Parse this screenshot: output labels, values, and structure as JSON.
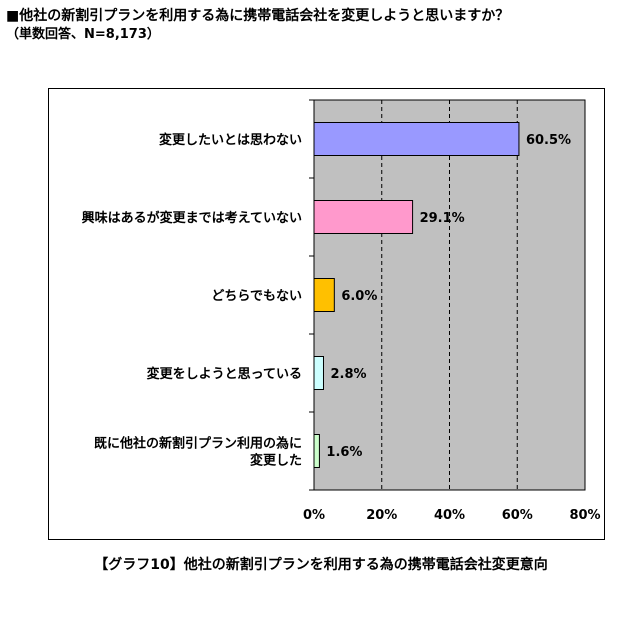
{
  "header": {
    "title": "■他社の新割引プランを利用する為に携帯電話会社を変更しようと思いますか？",
    "subtitle": "（単数回答、N=8,173）"
  },
  "caption": "【グラフ10】他社の新割引プランを利用する為の携帯電話会社変更意向",
  "colors": {
    "plot_bg": "#c0c0c0",
    "gridline": "#000000"
  },
  "chart_data": {
    "type": "bar",
    "orientation": "horizontal",
    "categories": [
      [
        "変更したいとは思わない"
      ],
      [
        "興味はあるが変更までは考えていない"
      ],
      [
        "どちらでもない"
      ],
      [
        "変更をしようと思っている"
      ],
      [
        "既に他社の新割引プラン利用の為に",
        "変更した"
      ]
    ],
    "values": [
      60.5,
      29.1,
      6.0,
      2.8,
      1.6
    ],
    "value_labels": [
      "60.5%",
      "29.1%",
      "6.0%",
      "2.8%",
      "1.6%"
    ],
    "bar_colors": [
      "#9999ff",
      "#ff99cc",
      "#ffc000",
      "#ccffff",
      "#ccffcc"
    ],
    "xlim": [
      0,
      80
    ],
    "xticks": [
      0,
      20,
      40,
      60,
      80
    ],
    "xtick_labels": [
      "0%",
      "20%",
      "40%",
      "60%",
      "80%"
    ],
    "grid": "vertical dashed"
  }
}
